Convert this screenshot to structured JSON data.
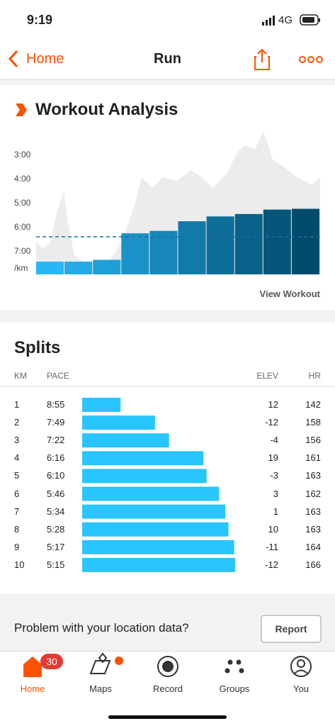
{
  "status_bar": {
    "time": "9:19",
    "network": "4G"
  },
  "nav": {
    "back": "Home",
    "title": "Run"
  },
  "analysis": {
    "title": "Workout Analysis",
    "y_labels": [
      "3:00",
      "4:00",
      "5:00",
      "6:00",
      "7:00"
    ],
    "unit": "/km",
    "link": "View Workout"
  },
  "splits": {
    "title": "Splits",
    "headers": [
      "KM",
      "PACE",
      "ELEV",
      "HR"
    ],
    "rows": [
      {
        "km": 1,
        "pace": "8:55",
        "elev": 12,
        "hr": 142
      },
      {
        "km": 2,
        "pace": "7:49",
        "elev": -12,
        "hr": 158
      },
      {
        "km": 3,
        "pace": "7:22",
        "elev": -4,
        "hr": 156
      },
      {
        "km": 4,
        "pace": "6:16",
        "elev": 19,
        "hr": 161
      },
      {
        "km": 5,
        "pace": "6:10",
        "elev": -3,
        "hr": 163
      },
      {
        "km": 6,
        "pace": "5:46",
        "elev": 3,
        "hr": 162
      },
      {
        "km": 7,
        "pace": "5:34",
        "elev": 1,
        "hr": 163
      },
      {
        "km": 8,
        "pace": "5:28",
        "elev": 10,
        "hr": 163
      },
      {
        "km": 9,
        "pace": "5:17",
        "elev": -11,
        "hr": 164
      },
      {
        "km": 10,
        "pace": "5:15",
        "elev": -12,
        "hr": 166
      }
    ]
  },
  "location": {
    "question": "Problem with your location data?",
    "button": "Report"
  },
  "tabs": [
    {
      "label": "Home",
      "badge": 30
    },
    {
      "label": "Maps"
    },
    {
      "label": "Record"
    },
    {
      "label": "Groups"
    },
    {
      "label": "You"
    }
  ]
}
